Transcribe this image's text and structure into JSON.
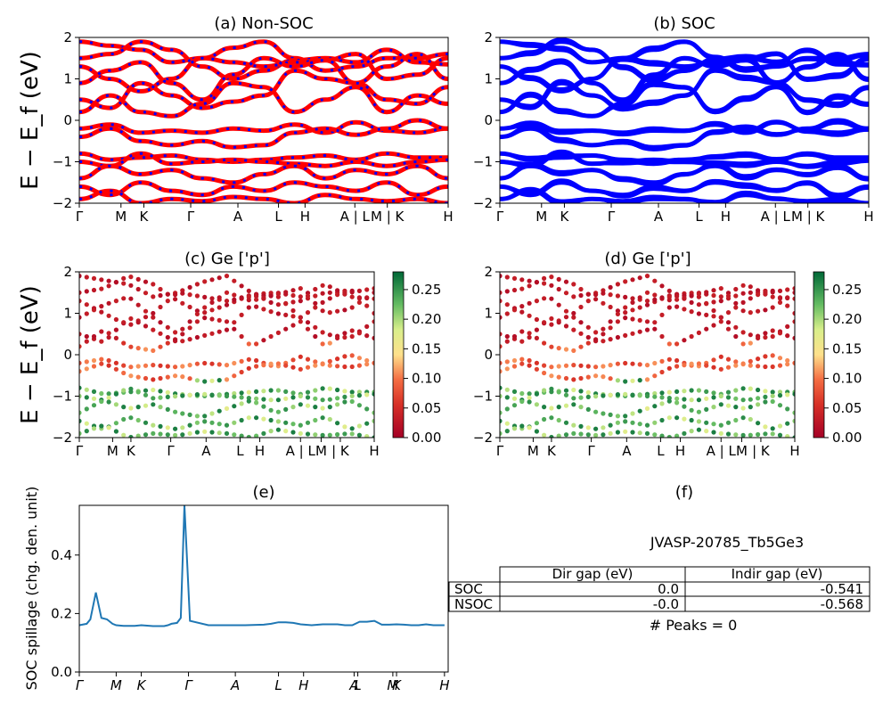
{
  "figure": {
    "y_label_band": "E − E_f (eV)"
  },
  "chart_data": [
    {
      "id": "a",
      "type": "line",
      "title": "(a) Non-SOC",
      "ylabel": "E − E_f (eV)",
      "ylim": [
        -2,
        2
      ],
      "yticks": [
        "2",
        "1",
        "0",
        "−1",
        "−2"
      ],
      "kpath_labels": [
        "Γ",
        "M",
        "K",
        "Γ",
        "A",
        "L",
        "H",
        "A | L",
        "M | K",
        "H"
      ],
      "kpath_positions": [
        0,
        0.113,
        0.175,
        0.302,
        0.43,
        0.54,
        0.612,
        0.747,
        0.835,
        1.0
      ],
      "series": [
        {
          "values": [
            1.9,
            1.8,
            1.7,
            1.4,
            1.5,
            1.75,
            1.9,
            1.5,
            1.2,
            1.3,
            1.5,
            1.5,
            1.6
          ]
        },
        {
          "values": [
            1.5,
            1.6,
            1.9,
            1.7,
            1.3,
            1.0,
            1.2,
            1.45,
            1.5,
            1.4,
            1.7,
            1.4,
            1.35
          ]
        },
        {
          "values": [
            1.3,
            1.0,
            0.7,
            1.0,
            1.5,
            1.4,
            1.3,
            1.4,
            1.45,
            1.6,
            1.0,
            1.1,
            1.5
          ]
        },
        {
          "values": [
            0.9,
            1.2,
            1.4,
            0.9,
            0.5,
            1.1,
            1.5,
            1.3,
            1.45,
            0.9,
            1.3,
            1.6,
            1.0
          ]
        },
        {
          "values": [
            0.5,
            0.3,
            0.9,
            0.6,
            0.3,
            0.45,
            0.6,
            1.2,
            1.0,
            0.9,
            0.5,
            0.4,
            0.8
          ]
        },
        {
          "values": [
            0.2,
            0.6,
            0.2,
            0.1,
            0.4,
            0.9,
            0.8,
            0.2,
            0.5,
            0.8,
            0.2,
            0.6,
            0.4
          ]
        },
        {
          "values": [
            -0.2,
            -0.1,
            -0.3,
            -0.25,
            -0.3,
            -0.2,
            -0.25,
            -0.1,
            -0.3,
            -0.05,
            -0.25,
            -0.3,
            -0.2
          ]
        },
        {
          "values": [
            -0.4,
            -0.2,
            -0.5,
            -0.6,
            -0.5,
            -0.65,
            -0.6,
            -0.3,
            -0.2,
            -0.35,
            -0.2,
            0.0,
            -0.2
          ]
        },
        {
          "values": [
            -0.8,
            -0.95,
            -0.9,
            -0.85,
            -0.95,
            -1.0,
            -0.95,
            -0.9,
            -0.85,
            -0.95,
            -0.8,
            -0.9,
            -0.9
          ]
        },
        {
          "values": [
            -1.0,
            -1.1,
            -0.8,
            -1.05,
            -1.0,
            -0.95,
            -1.0,
            -1.05,
            -1.1,
            -1.0,
            -1.1,
            -1.0,
            -0.95
          ]
        },
        {
          "values": [
            -1.4,
            -1.1,
            -1.3,
            -1.2,
            -1.4,
            -1.5,
            -1.3,
            -1.1,
            -1.4,
            -1.2,
            -1.3,
            -1.1,
            -1.4
          ]
        },
        {
          "values": [
            -1.6,
            -1.8,
            -1.5,
            -1.7,
            -1.8,
            -1.6,
            -1.7,
            -1.5,
            -1.6,
            -1.7,
            -1.5,
            -1.8,
            -1.6
          ]
        },
        {
          "values": [
            -1.9,
            -1.7,
            -2.0,
            -1.9,
            -1.95,
            -1.85,
            -1.9,
            -2.0,
            -1.8,
            -1.9,
            -1.95,
            -1.9,
            -2.0
          ]
        }
      ],
      "colors": {
        "up": "#ff0000",
        "down": "#0000ff"
      }
    },
    {
      "id": "b",
      "type": "line",
      "title": "(b) SOC",
      "ylim": [
        -2,
        2
      ],
      "yticks": [
        "2",
        "1",
        "0",
        "−1",
        "−2"
      ],
      "kpath_labels": [
        "Γ",
        "M",
        "K",
        "Γ",
        "A",
        "L",
        "H",
        "A | L",
        "M | K",
        "H"
      ],
      "kpath_positions": [
        0,
        0.113,
        0.175,
        0.302,
        0.43,
        0.54,
        0.612,
        0.747,
        0.835,
        1.0
      ],
      "colors": {
        "bands": "#0000ff"
      }
    },
    {
      "id": "c",
      "type": "scatter",
      "title": "(c)  Ge ['p']",
      "ylabel": "E − E_f (eV)",
      "ylim": [
        -2,
        2
      ],
      "yticks": [
        "2",
        "1",
        "0",
        "−1",
        "−2"
      ],
      "kpath_labels": [
        "Γ",
        "M",
        "K",
        "Γ",
        "A",
        "L",
        "H",
        "A | L",
        "M",
        "| K",
        "H"
      ],
      "kpath_positions": [
        0,
        0.113,
        0.175,
        0.31,
        0.43,
        0.545,
        0.612,
        0.75,
        0.82,
        0.885,
        1.0
      ],
      "colorbar": {
        "ticks": [
          "0.00",
          "0.05",
          "0.10",
          "0.15",
          "0.20",
          "0.25"
        ],
        "range": [
          0,
          0.28
        ],
        "cmap": "RdYlGn"
      }
    },
    {
      "id": "d",
      "type": "scatter",
      "title": "(d) Ge ['p']",
      "ylim": [
        -2,
        2
      ],
      "yticks": [
        "2",
        "1",
        "0",
        "−1",
        "−2"
      ],
      "kpath_labels": [
        "Γ",
        "M",
        "K",
        "Γ",
        "A",
        "L",
        "H",
        "A | L",
        "M",
        "| K",
        "H"
      ],
      "kpath_positions": [
        0,
        0.113,
        0.175,
        0.31,
        0.43,
        0.545,
        0.612,
        0.75,
        0.82,
        0.885,
        1.0
      ],
      "colorbar": {
        "ticks": [
          "0.00",
          "0.05",
          "0.10",
          "0.15",
          "0.20",
          "0.25"
        ],
        "range": [
          0,
          0.28
        ],
        "cmap": "RdYlGn"
      }
    },
    {
      "id": "e",
      "type": "line",
      "title": "(e)",
      "ylabel": "SOC spillage (chg. den. unit)",
      "ylim": [
        0,
        0.57
      ],
      "yticks": [
        "0.0",
        "0.2",
        "0.4"
      ],
      "yticks_values": [
        0.0,
        0.2,
        0.4
      ],
      "kpath_labels": [
        "Γ",
        "M",
        "K",
        "Γ",
        "A",
        "L",
        "H",
        "A",
        "L",
        "M",
        "K",
        "H"
      ],
      "kpath_positions": [
        0,
        0.1,
        0.168,
        0.296,
        0.423,
        0.54,
        0.608,
        0.745,
        0.755,
        0.85,
        0.86,
        0.99
      ],
      "color": "#1f77b4",
      "x": [
        0,
        0.02,
        0.03,
        0.045,
        0.06,
        0.075,
        0.09,
        0.1,
        0.12,
        0.15,
        0.168,
        0.2,
        0.22,
        0.23,
        0.24,
        0.25,
        0.265,
        0.275,
        0.285,
        0.3,
        0.35,
        0.4,
        0.45,
        0.5,
        0.52,
        0.54,
        0.56,
        0.58,
        0.6,
        0.63,
        0.66,
        0.7,
        0.72,
        0.74,
        0.76,
        0.78,
        0.8,
        0.82,
        0.84,
        0.86,
        0.88,
        0.9,
        0.92,
        0.94,
        0.96,
        0.99
      ],
      "values": [
        0.16,
        0.165,
        0.18,
        0.272,
        0.185,
        0.18,
        0.165,
        0.16,
        0.158,
        0.158,
        0.16,
        0.157,
        0.157,
        0.157,
        0.16,
        0.165,
        0.168,
        0.185,
        0.57,
        0.175,
        0.16,
        0.16,
        0.16,
        0.162,
        0.165,
        0.17,
        0.17,
        0.168,
        0.163,
        0.16,
        0.163,
        0.163,
        0.16,
        0.16,
        0.172,
        0.172,
        0.175,
        0.162,
        0.162,
        0.163,
        0.162,
        0.16,
        0.16,
        0.163,
        0.16,
        0.16
      ]
    }
  ],
  "table": {
    "title_f": "(f)",
    "caption": "JVASP-20785_Tb5Ge3",
    "headers": [
      "",
      "Dir gap (eV)",
      "Indir gap (eV)"
    ],
    "rows": [
      {
        "label": "SOC",
        "dir": "0.0",
        "indir": "-0.541"
      },
      {
        "label": "NSOC",
        "dir": "-0.0",
        "indir": "-0.568"
      }
    ],
    "footer": "# Peaks = 0"
  }
}
